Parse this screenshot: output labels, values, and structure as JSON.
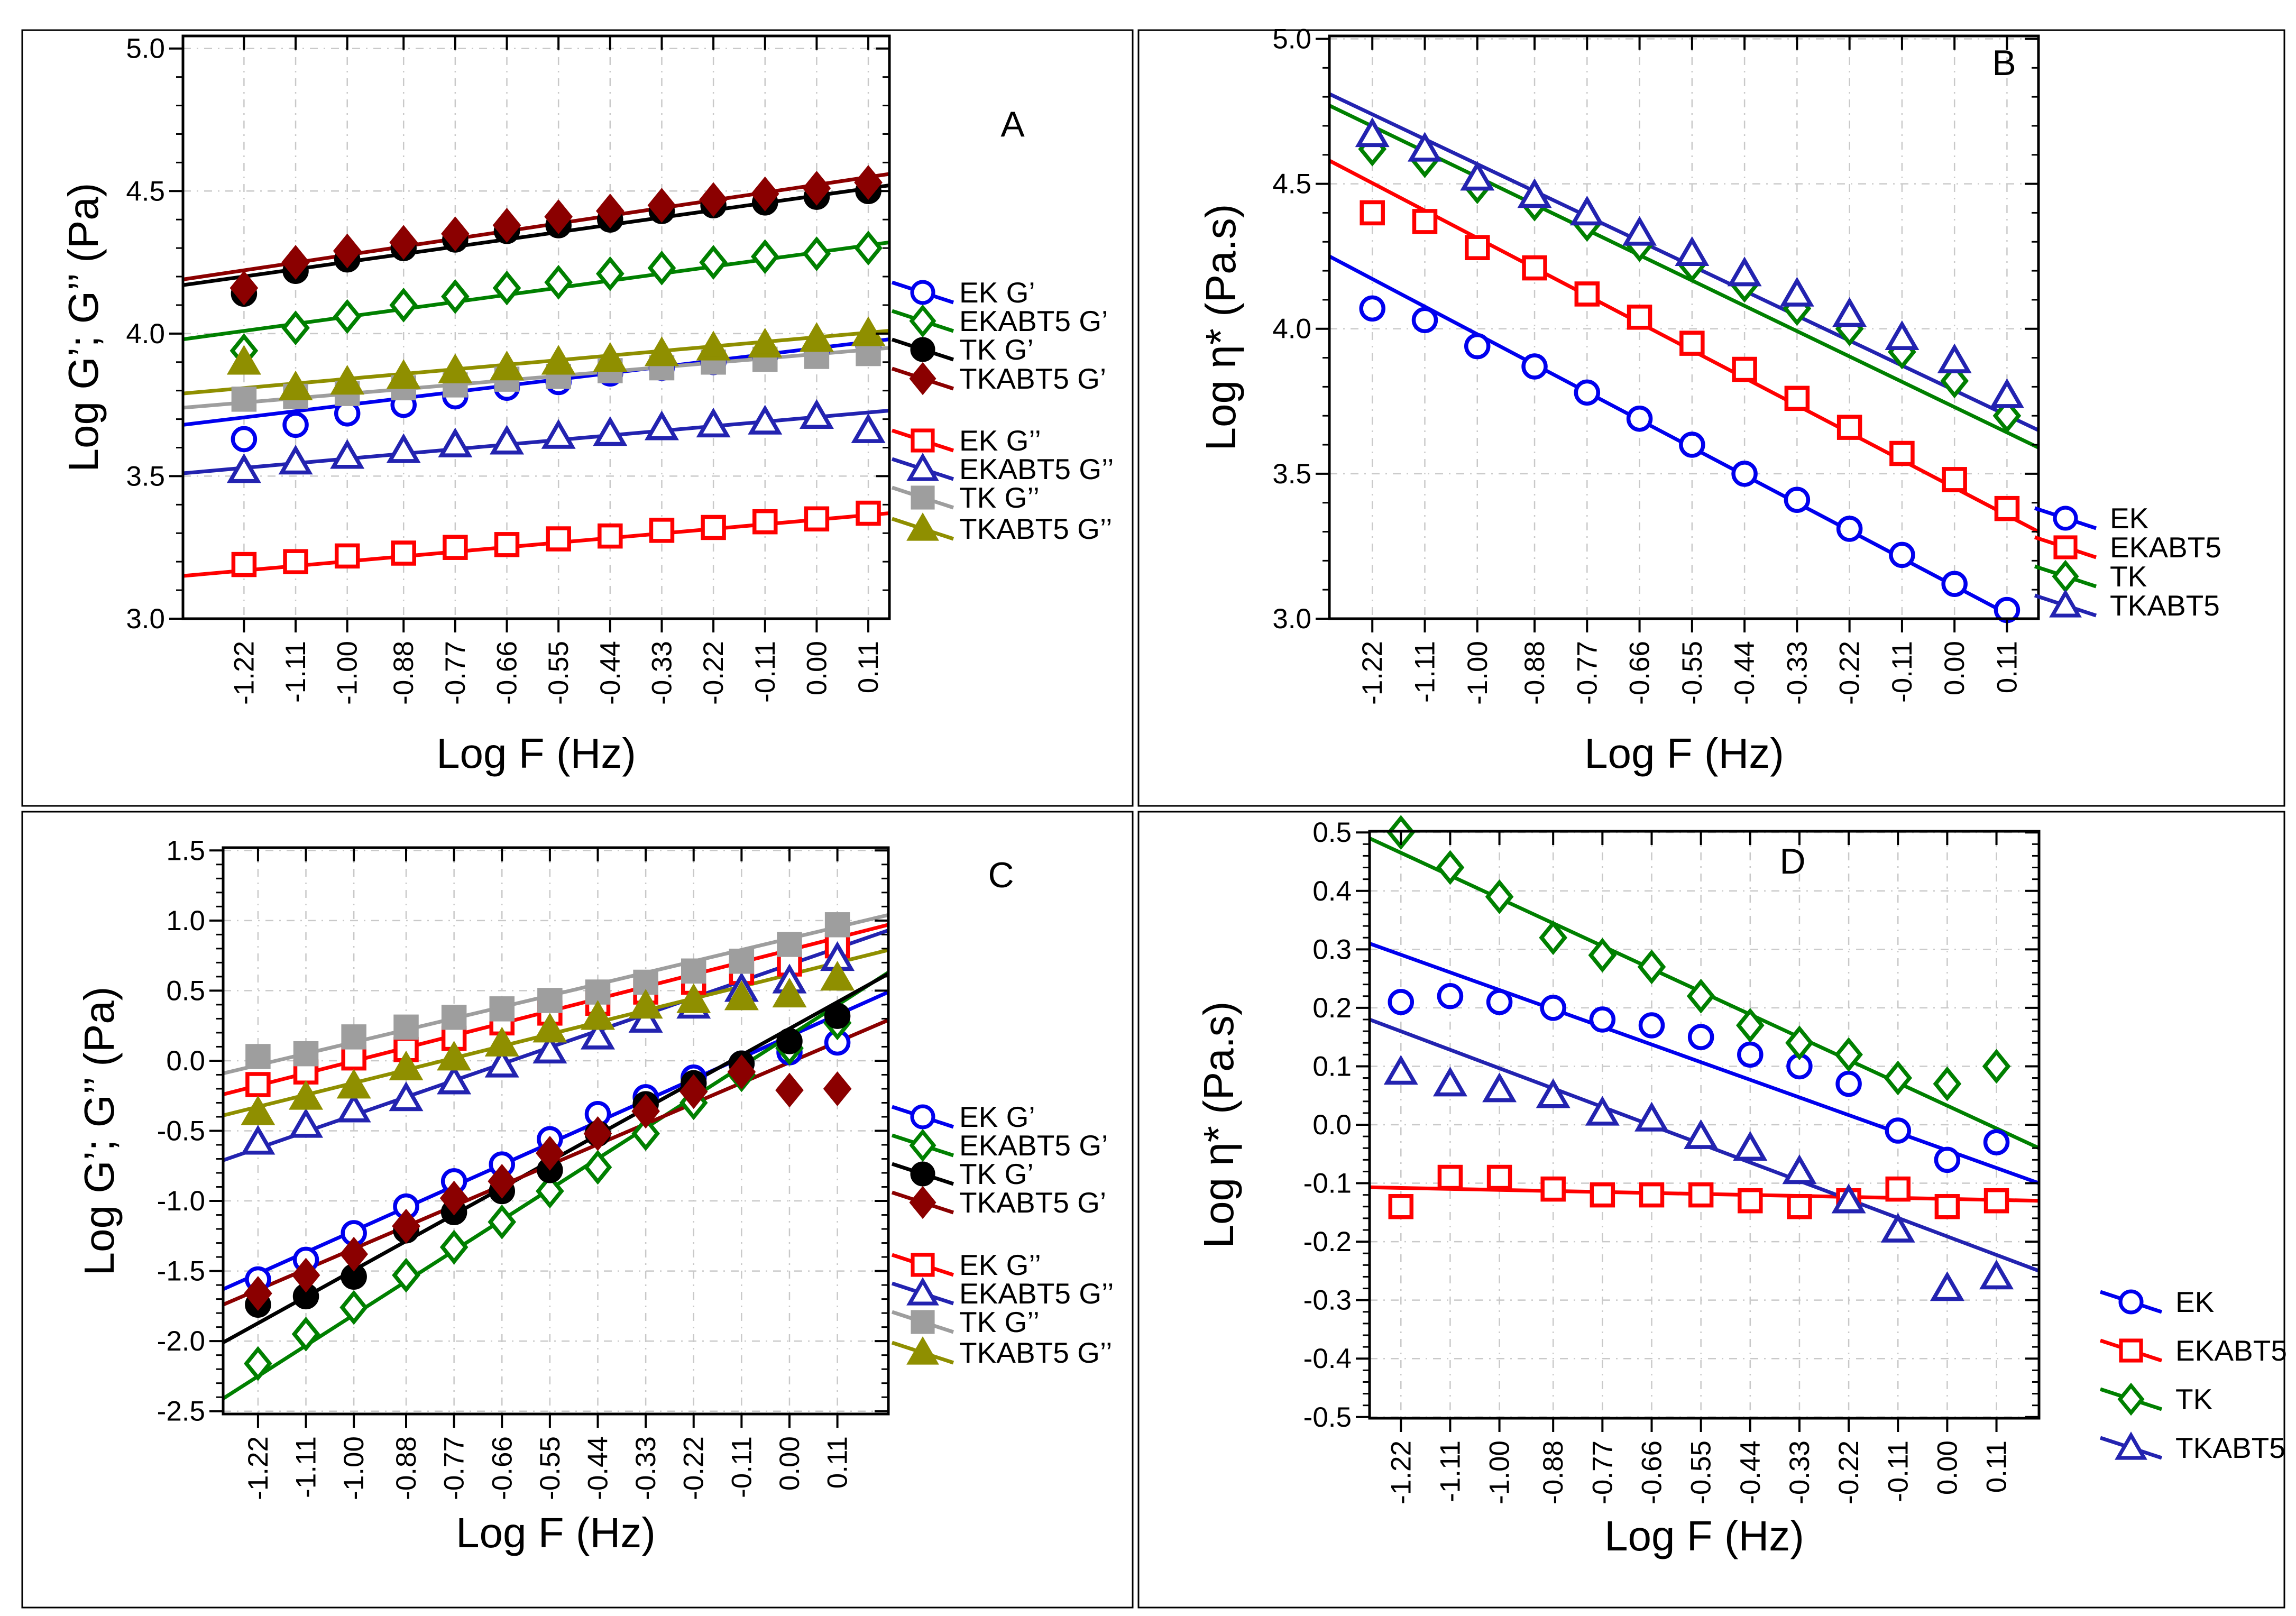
{
  "figure_title": "",
  "chart_data": [
    {
      "id": "A",
      "type": "scatter",
      "panel_label": "A",
      "xlabel": "Log F (Hz)",
      "ylabel": "Log G’; G’’ (Pa)",
      "x_tick_labels": [
        "-1.22",
        "-1.11",
        "-1.00",
        "-0.88",
        "-0.77",
        "-0.66",
        "-0.55",
        "-0.44",
        "-0.33",
        "-0.22",
        "-0.11",
        "0.00",
        "0.11"
      ],
      "x_values": [
        -1.22,
        -1.11,
        -1.0,
        -0.88,
        -0.77,
        -0.66,
        -0.55,
        -0.44,
        -0.33,
        -0.22,
        -0.11,
        0.0,
        0.11
      ],
      "y_tick_labels": [
        "5.0",
        "4.5",
        "4.0",
        "3.5",
        "3.0"
      ],
      "y_tick_values": [
        5.0,
        4.5,
        4.0,
        3.5,
        3.0
      ],
      "ylim": [
        3.0,
        5.0
      ],
      "grid": true,
      "legend_position": "right-middle",
      "legend_groups": [
        [
          0,
          1,
          2,
          3
        ],
        [
          4,
          5,
          6,
          7
        ]
      ],
      "series": [
        {
          "name": "EK G’",
          "marker": "circle",
          "variant": "open",
          "color": "#0000EE",
          "values": [
            3.63,
            3.68,
            3.72,
            3.75,
            3.78,
            3.81,
            3.83,
            3.86,
            3.88,
            3.9,
            3.92,
            3.94,
            3.96
          ],
          "fit": [
            3.68,
            3.98
          ]
        },
        {
          "name": "EKABT5 G’",
          "marker": "diamond",
          "variant": "open",
          "color": "#008000",
          "values": [
            3.94,
            4.02,
            4.06,
            4.1,
            4.13,
            4.16,
            4.18,
            4.21,
            4.23,
            4.25,
            4.27,
            4.28,
            4.3
          ],
          "fit": [
            3.98,
            4.32
          ]
        },
        {
          "name": "TK G’",
          "marker": "circle",
          "variant": "filled",
          "color": "#000000",
          "values": [
            4.14,
            4.22,
            4.26,
            4.3,
            4.33,
            4.36,
            4.38,
            4.4,
            4.43,
            4.45,
            4.46,
            4.48,
            4.5
          ],
          "fit": [
            4.17,
            4.52
          ]
        },
        {
          "name": "TKABT5 G’",
          "marker": "diamond",
          "variant": "filled",
          "color": "#8B0000",
          "values": [
            4.16,
            4.25,
            4.29,
            4.32,
            4.35,
            4.38,
            4.41,
            4.43,
            4.45,
            4.47,
            4.49,
            4.51,
            4.53
          ],
          "fit": [
            4.19,
            4.56
          ]
        },
        {
          "name": "EK G’’",
          "marker": "square",
          "variant": "open",
          "color": "#FF0000",
          "values": [
            3.19,
            3.2,
            3.22,
            3.23,
            3.25,
            3.26,
            3.28,
            3.29,
            3.31,
            3.32,
            3.34,
            3.35,
            3.37
          ],
          "fit": [
            3.15,
            3.37
          ]
        },
        {
          "name": "EKABT5 G’’",
          "marker": "triangle",
          "variant": "open",
          "color": "#2323B0",
          "values": [
            3.52,
            3.55,
            3.57,
            3.59,
            3.61,
            3.62,
            3.64,
            3.65,
            3.67,
            3.68,
            3.69,
            3.71,
            3.66
          ],
          "fit": [
            3.51,
            3.73
          ]
        },
        {
          "name": "TK G’’",
          "marker": "square",
          "variant": "filled",
          "color": "#9E9E9E",
          "values": [
            3.77,
            3.78,
            3.79,
            3.81,
            3.82,
            3.84,
            3.85,
            3.87,
            3.88,
            3.9,
            3.91,
            3.92,
            3.93
          ],
          "fit": [
            3.74,
            3.95
          ]
        },
        {
          "name": "TKABT5 G’’",
          "marker": "triangle",
          "variant": "filled",
          "color": "#8F8F00",
          "values": [
            3.9,
            3.81,
            3.83,
            3.85,
            3.87,
            3.88,
            3.9,
            3.91,
            3.93,
            3.95,
            3.96,
            3.98,
            4.0
          ],
          "fit": [
            3.79,
            4.01
          ]
        }
      ]
    },
    {
      "id": "B",
      "type": "scatter",
      "panel_label": "B",
      "xlabel": "Log F (Hz)",
      "ylabel": "Log η* (Pa.s)",
      "x_tick_labels": [
        "-1.22",
        "-1.11",
        "-1.00",
        "-0.88",
        "-0.77",
        "-0.66",
        "-0.55",
        "-0.44",
        "-0.33",
        "-0.22",
        "-0.11",
        "0.00",
        "0.11"
      ],
      "x_values": [
        -1.22,
        -1.11,
        -1.0,
        -0.88,
        -0.77,
        -0.66,
        -0.55,
        -0.44,
        -0.33,
        -0.22,
        -0.11,
        0.0,
        0.11
      ],
      "y_tick_labels": [
        "5.0",
        "4.5",
        "4.0",
        "3.5",
        "3.0"
      ],
      "y_tick_values": [
        5.0,
        4.5,
        4.0,
        3.5,
        3.0
      ],
      "ylim": [
        3.0,
        5.0
      ],
      "grid": true,
      "legend_position": "right-lower",
      "legend_groups": [
        [
          0,
          1,
          2,
          3
        ]
      ],
      "series": [
        {
          "name": "EK",
          "marker": "circle",
          "variant": "open",
          "color": "#0000EE",
          "values": [
            4.07,
            4.03,
            3.94,
            3.87,
            3.78,
            3.69,
            3.6,
            3.5,
            3.41,
            3.31,
            3.22,
            3.12,
            3.03
          ],
          "fit": [
            4.25,
            2.96
          ]
        },
        {
          "name": "EKABT5",
          "marker": "square",
          "variant": "open",
          "color": "#FF0000",
          "values": [
            4.4,
            4.37,
            4.28,
            4.21,
            4.12,
            4.04,
            3.95,
            3.86,
            3.76,
            3.66,
            3.57,
            3.48,
            3.38
          ],
          "fit": [
            4.58,
            3.3
          ]
        },
        {
          "name": "TK",
          "marker": "diamond",
          "variant": "open",
          "color": "#008000",
          "values": [
            4.62,
            4.58,
            4.49,
            4.43,
            4.36,
            4.29,
            4.22,
            4.15,
            4.07,
            4.0,
            3.92,
            3.82,
            3.7
          ],
          "fit": [
            4.77,
            3.59
          ]
        },
        {
          "name": "TKABT5",
          "marker": "triangle",
          "variant": "open",
          "color": "#2323B0",
          "values": [
            4.67,
            4.62,
            4.52,
            4.46,
            4.4,
            4.33,
            4.26,
            4.19,
            4.12,
            4.05,
            3.97,
            3.89,
            3.77
          ],
          "fit": [
            4.81,
            3.65
          ]
        }
      ]
    },
    {
      "id": "C",
      "type": "scatter",
      "panel_label": "C",
      "xlabel": "Log F (Hz)",
      "ylabel": "Log G’; G’’ (Pa)",
      "x_tick_labels": [
        "-1.22",
        "-1.11",
        "-1.00",
        "-0.88",
        "-0.77",
        "-0.66",
        "-0.55",
        "-0.44",
        "-0.33",
        "-0.22",
        "-0.11",
        "0.00",
        "0.11"
      ],
      "x_values": [
        -1.22,
        -1.11,
        -1.0,
        -0.88,
        -0.77,
        -0.66,
        -0.55,
        -0.44,
        -0.33,
        -0.22,
        -0.11,
        0.0,
        0.11
      ],
      "y_tick_labels": [
        "1.5",
        "1.0",
        "0.5",
        "0.0",
        "-0.5",
        "-1.0",
        "-1.5",
        "-2.0",
        "-2.5"
      ],
      "y_tick_values": [
        1.5,
        1.0,
        0.5,
        0.0,
        -0.5,
        -1.0,
        -1.5,
        -2.0,
        -2.5
      ],
      "ylim": [
        -2.5,
        1.5
      ],
      "grid": true,
      "legend_position": "right-middle",
      "legend_groups": [
        [
          0,
          1,
          2,
          3
        ],
        [
          4,
          5,
          6,
          7
        ]
      ],
      "series": [
        {
          "name": "EK G’",
          "marker": "circle",
          "variant": "open",
          "color": "#0000EE",
          "values": [
            -1.56,
            -1.42,
            -1.23,
            -1.04,
            -0.86,
            -0.74,
            -0.56,
            -0.38,
            -0.26,
            -0.12,
            -0.02,
            0.06,
            0.13
          ],
          "fit": [
            -1.63,
            0.49
          ]
        },
        {
          "name": "EKABT5 G’",
          "marker": "diamond",
          "variant": "open",
          "color": "#008000",
          "values": [
            -2.16,
            -1.95,
            -1.76,
            -1.53,
            -1.33,
            -1.15,
            -0.93,
            -0.76,
            -0.52,
            -0.3,
            -0.1,
            0.09,
            0.27
          ],
          "fit": [
            -2.41,
            0.63
          ]
        },
        {
          "name": "TK G’",
          "marker": "circle",
          "variant": "filled",
          "color": "#000000",
          "values": [
            -1.74,
            -1.68,
            -1.54,
            -1.21,
            -1.08,
            -0.93,
            -0.78,
            -0.52,
            -0.31,
            -0.16,
            -0.02,
            0.14,
            0.32
          ],
          "fit": [
            -2.01,
            0.62
          ]
        },
        {
          "name": "TKABT5 G’",
          "marker": "diamond",
          "variant": "filled",
          "color": "#8B0000",
          "values": [
            -1.66,
            -1.53,
            -1.38,
            -1.18,
            -0.98,
            -0.86,
            -0.66,
            -0.52,
            -0.36,
            -0.22,
            -0.08,
            -0.21,
            -0.2
          ],
          "fit": [
            -1.74,
            0.29
          ]
        },
        {
          "name": "EK G’’",
          "marker": "square",
          "variant": "open",
          "color": "#FF0000",
          "values": [
            -0.17,
            -0.08,
            0.02,
            0.08,
            0.16,
            0.27,
            0.34,
            0.41,
            0.49,
            0.56,
            0.63,
            0.69,
            0.82
          ],
          "fit": [
            -0.24,
            0.97
          ]
        },
        {
          "name": "EKABT5 G’’",
          "marker": "triangle",
          "variant": "open",
          "color": "#2323B0",
          "values": [
            -0.58,
            -0.46,
            -0.35,
            -0.27,
            -0.15,
            -0.03,
            0.07,
            0.17,
            0.29,
            0.39,
            0.51,
            0.57,
            0.73
          ],
          "fit": [
            -0.71,
            0.93
          ]
        },
        {
          "name": "TK G’’",
          "marker": "square",
          "variant": "filled",
          "color": "#9E9E9E",
          "values": [
            0.03,
            0.05,
            0.17,
            0.24,
            0.31,
            0.37,
            0.43,
            0.49,
            0.56,
            0.64,
            0.71,
            0.83,
            0.97
          ],
          "fit": [
            -0.09,
            1.04
          ]
        },
        {
          "name": "TKABT5 G’’",
          "marker": "triangle",
          "variant": "filled",
          "color": "#8F8F00",
          "values": [
            -0.37,
            -0.26,
            -0.18,
            -0.05,
            0.02,
            0.12,
            0.22,
            0.31,
            0.39,
            0.43,
            0.45,
            0.47,
            0.59
          ],
          "fit": [
            -0.39,
            0.79
          ]
        }
      ]
    },
    {
      "id": "D",
      "type": "scatter",
      "panel_label": "D",
      "xlabel": "Log F (Hz)",
      "ylabel": "Log η* (Pa.s)",
      "x_tick_labels": [
        "-1.22",
        "-1.11",
        "-1.00",
        "-0.88",
        "-0.77",
        "-0.66",
        "-0.55",
        "-0.44",
        "-0.33",
        "-0.22",
        "-0.11",
        "0.00",
        "0.11"
      ],
      "x_values": [
        -1.22,
        -1.11,
        -1.0,
        -0.88,
        -0.77,
        -0.66,
        -0.55,
        -0.44,
        -0.33,
        -0.22,
        -0.11,
        0.0,
        0.11
      ],
      "y_tick_labels": [
        "0.5",
        "0.4",
        "0.3",
        "0.2",
        "0.1",
        "0.0",
        "-0.1",
        "-0.2",
        "-0.3",
        "-0.4",
        "-0.5"
      ],
      "y_tick_values": [
        0.5,
        0.4,
        0.3,
        0.2,
        0.1,
        0.0,
        -0.1,
        -0.2,
        -0.3,
        -0.4,
        -0.5
      ],
      "ylim": [
        -0.5,
        0.5
      ],
      "grid": true,
      "legend_position": "right-lower",
      "legend_groups": [
        [
          0,
          1,
          2,
          3
        ]
      ],
      "series": [
        {
          "name": "EK",
          "marker": "circle",
          "variant": "open",
          "color": "#0000EE",
          "values": [
            0.21,
            0.22,
            0.21,
            0.2,
            0.18,
            0.17,
            0.15,
            0.12,
            0.1,
            0.07,
            -0.01,
            -0.06,
            -0.03
          ],
          "fit": [
            0.31,
            -0.1
          ]
        },
        {
          "name": "EKABT5",
          "marker": "square",
          "variant": "open",
          "color": "#FF0000",
          "values": [
            -0.14,
            -0.09,
            -0.09,
            -0.11,
            -0.12,
            -0.12,
            -0.12,
            -0.13,
            -0.14,
            -0.13,
            -0.11,
            -0.14,
            -0.13
          ],
          "fit": [
            -0.107,
            -0.13
          ]
        },
        {
          "name": "TK",
          "marker": "diamond",
          "variant": "open",
          "color": "#008000",
          "values": [
            0.5,
            0.44,
            0.39,
            0.32,
            0.29,
            0.27,
            0.22,
            0.17,
            0.14,
            0.12,
            0.08,
            0.07,
            0.1
          ],
          "fit": [
            0.49,
            -0.04
          ]
        },
        {
          "name": "TKABT5",
          "marker": "triangle",
          "variant": "open",
          "color": "#2323B0",
          "values": [
            0.09,
            0.07,
            0.06,
            0.05,
            0.02,
            0.01,
            -0.02,
            -0.04,
            -0.08,
            -0.13,
            -0.18,
            -0.28,
            -0.26
          ],
          "fit": [
            0.18,
            -0.25
          ]
        }
      ]
    }
  ]
}
